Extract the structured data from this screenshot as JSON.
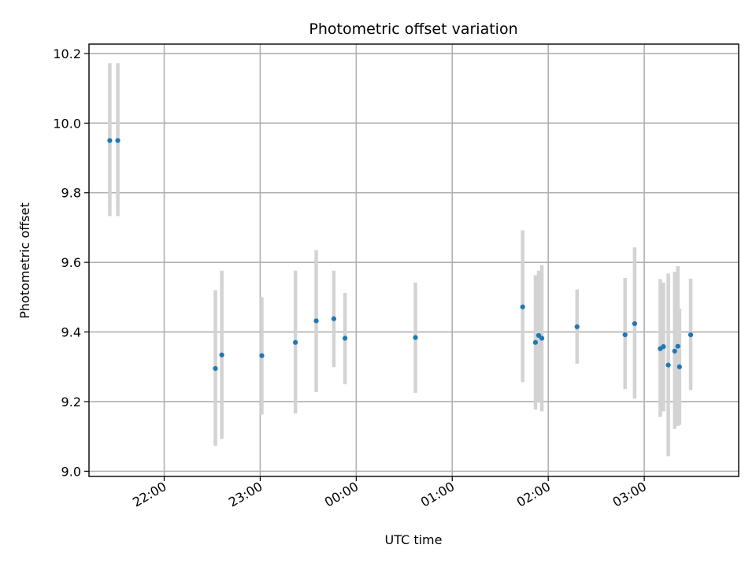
{
  "chart_data": {
    "type": "scatter",
    "title": "Photometric offset variation",
    "xlabel": "UTC time",
    "ylabel": "Photometric offset",
    "xlim": [
      "21:13",
      "27:59"
    ],
    "ylim": [
      8.985,
      10.227
    ],
    "xticks": [
      {
        "time": "22:00",
        "label": "22:00"
      },
      {
        "time": "23:00",
        "label": "23:00"
      },
      {
        "time": "24:00",
        "label": "00:00"
      },
      {
        "time": "25:00",
        "label": "01:00"
      },
      {
        "time": "26:00",
        "label": "02:00"
      },
      {
        "time": "27:00",
        "label": "03:00"
      }
    ],
    "yticks": [
      9.0,
      9.2,
      9.4,
      9.6,
      9.8,
      10.0,
      10.2
    ],
    "ytick_labels": [
      "9.0",
      "9.2",
      "9.4",
      "9.6",
      "9.8",
      "10.0",
      "10.2"
    ],
    "grid": true,
    "marker_color": "#1f77b4",
    "errorbar_color": "#d3d3d3",
    "points": [
      {
        "time": "21:26",
        "y": 9.95,
        "ylow": 9.733,
        "yhigh": 10.172
      },
      {
        "time": "21:31",
        "y": 9.95,
        "ylow": 9.733,
        "yhigh": 10.172
      },
      {
        "time": "22:32",
        "y": 9.295,
        "ylow": 9.073,
        "yhigh": 9.52
      },
      {
        "time": "22:36",
        "y": 9.334,
        "ylow": 9.093,
        "yhigh": 9.576
      },
      {
        "time": "23:01",
        "y": 9.332,
        "ylow": 9.163,
        "yhigh": 9.5
      },
      {
        "time": "23:22",
        "y": 9.37,
        "ylow": 9.166,
        "yhigh": 9.576
      },
      {
        "time": "23:35",
        "y": 9.432,
        "ylow": 9.227,
        "yhigh": 9.635
      },
      {
        "time": "23:46",
        "y": 9.438,
        "ylow": 9.299,
        "yhigh": 9.576
      },
      {
        "time": "23:53",
        "y": 9.382,
        "ylow": 9.25,
        "yhigh": 9.512
      },
      {
        "time": "24:37",
        "y": 9.384,
        "ylow": 9.225,
        "yhigh": 9.542
      },
      {
        "time": "25:44",
        "y": 9.472,
        "ylow": 9.256,
        "yhigh": 9.692
      },
      {
        "time": "25:52",
        "y": 9.37,
        "ylow": 9.177,
        "yhigh": 9.563
      },
      {
        "time": "25:54",
        "y": 9.39,
        "ylow": 9.2,
        "yhigh": 9.576
      },
      {
        "time": "25:56",
        "y": 9.382,
        "ylow": 9.172,
        "yhigh": 9.592
      },
      {
        "time": "26:18",
        "y": 9.415,
        "ylow": 9.309,
        "yhigh": 9.522
      },
      {
        "time": "26:48",
        "y": 9.392,
        "ylow": 9.236,
        "yhigh": 9.555
      },
      {
        "time": "26:54",
        "y": 9.424,
        "ylow": 9.209,
        "yhigh": 9.643
      },
      {
        "time": "27:10",
        "y": 9.352,
        "ylow": 9.156,
        "yhigh": 9.552
      },
      {
        "time": "27:12",
        "y": 9.358,
        "ylow": 9.172,
        "yhigh": 9.542
      },
      {
        "time": "27:15",
        "y": 9.305,
        "ylow": 9.043,
        "yhigh": 9.568
      },
      {
        "time": "27:19",
        "y": 9.345,
        "ylow": 9.122,
        "yhigh": 9.573
      },
      {
        "time": "27:21",
        "y": 9.359,
        "ylow": 9.13,
        "yhigh": 9.589
      },
      {
        "time": "27:22",
        "y": 9.3,
        "ylow": 9.133,
        "yhigh": 9.467
      },
      {
        "time": "27:29",
        "y": 9.392,
        "ylow": 9.233,
        "yhigh": 9.553
      }
    ]
  }
}
